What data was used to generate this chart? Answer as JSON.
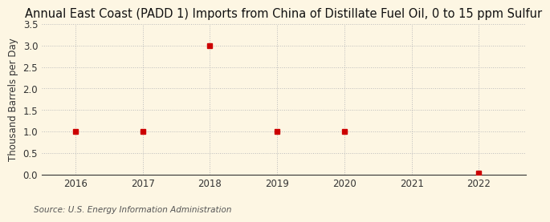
{
  "title": "Annual East Coast (PADD 1) Imports from China of Distillate Fuel Oil, 0 to 15 ppm Sulfur",
  "ylabel": "Thousand Barrels per Day",
  "source": "Source: U.S. Energy Information Administration",
  "x_values": [
    2016,
    2017,
    2018,
    2019,
    2020,
    2022
  ],
  "y_values": [
    1.0,
    1.0,
    3.0,
    1.0,
    1.0,
    0.03
  ],
  "xlim": [
    2015.5,
    2022.7
  ],
  "ylim": [
    0.0,
    3.5
  ],
  "yticks": [
    0.0,
    0.5,
    1.0,
    1.5,
    2.0,
    2.5,
    3.0,
    3.5
  ],
  "xticks": [
    2016,
    2017,
    2018,
    2019,
    2020,
    2021,
    2022
  ],
  "background_color": "#fdf6e3",
  "plot_bg_color": "#fdf6e3",
  "marker_color": "#cc0000",
  "marker": "s",
  "marker_size": 4,
  "grid_color": "#bbbbbb",
  "grid_linestyle": ":",
  "title_fontsize": 10.5,
  "label_fontsize": 8.5,
  "tick_fontsize": 8.5,
  "source_fontsize": 7.5
}
